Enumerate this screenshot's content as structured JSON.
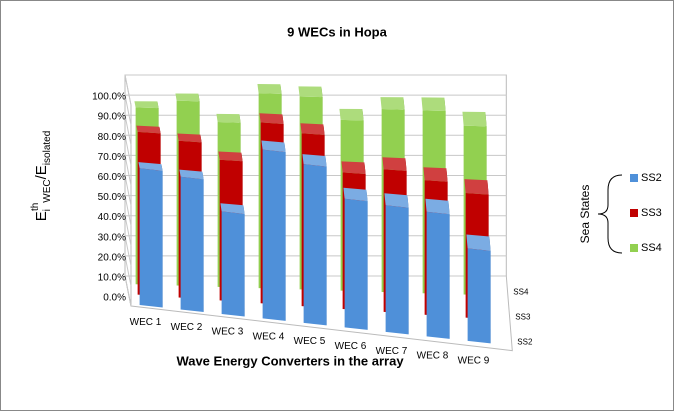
{
  "chart_data": {
    "type": "bar3d",
    "title": "9 WECs in Hopa",
    "x_label": "Wave Energy Converters in the array",
    "y_label_parts": [
      "E",
      "i",
      "th",
      "WEC",
      "/E",
      "isolated"
    ],
    "legend_title": "Sea States",
    "categories": [
      "WEC 1",
      "WEC 2",
      "WEC 3",
      "WEC 4",
      "WEC 5",
      "WEC 6",
      "WEC 7",
      "WEC 8",
      "WEC 9"
    ],
    "series": [
      {
        "name": "SS2",
        "color": "#4f90d9",
        "values": [
          68,
          66,
          51,
          84,
          79,
          64,
          63,
          62,
          46
        ]
      },
      {
        "name": "SS3",
        "color": "#c00000",
        "values": [
          81,
          78,
          70,
          90,
          86,
          68,
          71,
          67,
          62
        ]
      },
      {
        "name": "SS4",
        "color": "#92d050",
        "values": [
          88,
          92,
          82,
          97,
          96,
          85,
          91,
          91,
          84
        ]
      }
    ],
    "ylim": [
      0,
      100
    ],
    "yticks": [
      {
        "value": 0,
        "label": "0.0%"
      },
      {
        "value": 10,
        "label": "10.0%"
      },
      {
        "value": 20,
        "label": "20.0%"
      },
      {
        "value": 30,
        "label": "30.0%"
      },
      {
        "value": 40,
        "label": "40.0%"
      },
      {
        "value": 50,
        "label": "50.0%"
      },
      {
        "value": 60,
        "label": "60.0%"
      },
      {
        "value": 70,
        "label": "70.0%"
      },
      {
        "value": 80,
        "label": "80.0%"
      },
      {
        "value": 90,
        "label": "90.0%"
      },
      {
        "value": 100,
        "label": "100.0%"
      }
    ],
    "grid": true
  }
}
